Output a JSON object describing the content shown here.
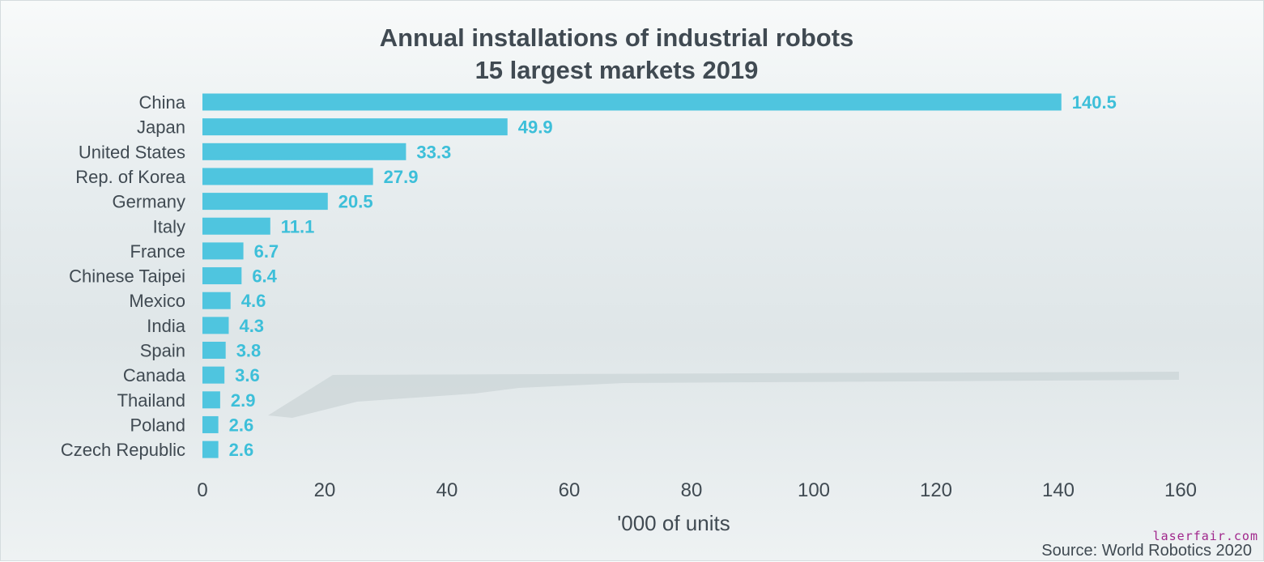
{
  "chart_data": {
    "type": "bar",
    "orientation": "horizontal",
    "title": "Annual installations of industrial robots",
    "subtitle": "15 largest markets 2019",
    "xlabel": "'000 of units",
    "ylabel": "",
    "xlim": [
      0,
      160
    ],
    "xticks": [
      0,
      20,
      40,
      60,
      80,
      100,
      120,
      140,
      160
    ],
    "categories": [
      "China",
      "Japan",
      "United States",
      "Rep. of Korea",
      "Germany",
      "Italy",
      "France",
      "Chinese Taipei",
      "Mexico",
      "India",
      "Spain",
      "Canada",
      "Thailand",
      "Poland",
      "Czech Republic"
    ],
    "values": [
      140.5,
      49.9,
      33.3,
      27.9,
      20.5,
      11.1,
      6.7,
      6.4,
      4.6,
      4.3,
      3.8,
      3.6,
      2.9,
      2.6,
      2.6
    ],
    "value_labels": [
      "140.5",
      "49.9",
      "33.3",
      "27.9",
      "20.5",
      "11.1",
      "6.7",
      "6.4",
      "4.6",
      "4.3",
      "3.8",
      "3.6",
      "2.9",
      "2.6",
      "2.6"
    ],
    "grid": false,
    "legend": "none",
    "colors": {
      "bar": "#4fc5df",
      "value_label": "#3dbfd9",
      "text": "#404a52"
    }
  },
  "source": "Source: World Robotics 2020",
  "watermark": "laserfair.com"
}
